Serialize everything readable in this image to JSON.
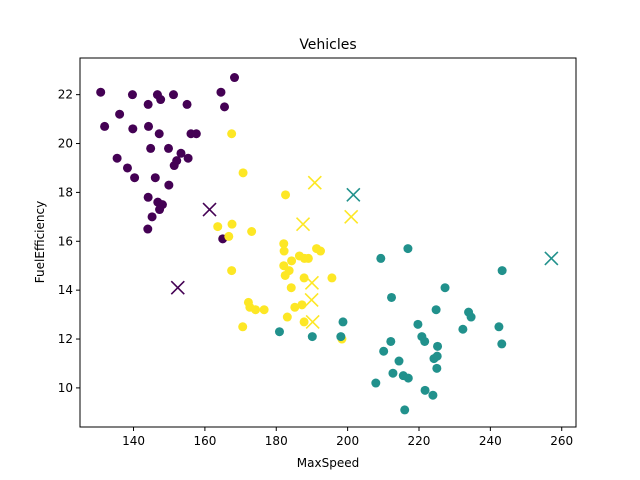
{
  "chart_data": {
    "type": "scatter",
    "title": "Vehicles",
    "xlabel": "MaxSpeed",
    "ylabel": "FuelEfficiency",
    "xlim": [
      125,
      264
    ],
    "ylim": [
      8.4,
      23.5
    ],
    "xticks": [
      140,
      160,
      180,
      200,
      220,
      240,
      260
    ],
    "yticks": [
      10,
      12,
      14,
      16,
      18,
      20,
      22
    ],
    "grid": false,
    "legend": "none",
    "colors": {
      "purple": "#440154",
      "teal": "#21918c",
      "yellow": "#fde725"
    },
    "series": [
      {
        "color": "#440154",
        "marker": "circle",
        "points": [
          [
            130.8,
            22.1
          ],
          [
            139.7,
            22.0
          ],
          [
            144.1,
            21.6
          ],
          [
            146.7,
            22.0
          ],
          [
            147.6,
            21.8
          ],
          [
            151.2,
            22.0
          ],
          [
            155.0,
            21.6
          ],
          [
            164.5,
            22.1
          ],
          [
            165.5,
            21.5
          ],
          [
            168.3,
            22.7
          ],
          [
            131.9,
            20.7
          ],
          [
            136.1,
            21.2
          ],
          [
            139.8,
            20.6
          ],
          [
            144.2,
            20.7
          ],
          [
            147.2,
            20.4
          ],
          [
            156.1,
            20.4
          ],
          [
            157.6,
            20.4
          ],
          [
            144.8,
            19.8
          ],
          [
            149.8,
            19.8
          ],
          [
            153.3,
            19.6
          ],
          [
            155.3,
            19.4
          ],
          [
            151.4,
            19.1
          ],
          [
            152.1,
            19.3
          ],
          [
            135.4,
            19.4
          ],
          [
            138.3,
            19.0
          ],
          [
            140.3,
            18.6
          ],
          [
            146.1,
            18.6
          ],
          [
            149.9,
            18.3
          ],
          [
            144.1,
            17.8
          ],
          [
            146.8,
            17.6
          ],
          [
            148.1,
            17.5
          ],
          [
            147.3,
            17.3
          ],
          [
            145.2,
            17.0
          ],
          [
            144.0,
            16.5
          ],
          [
            165.0,
            16.1
          ]
        ]
      },
      {
        "color": "#fde725",
        "marker": "circle",
        "points": [
          [
            167.5,
            20.4
          ],
          [
            170.7,
            18.8
          ],
          [
            182.6,
            17.9
          ],
          [
            163.6,
            16.6
          ],
          [
            167.6,
            16.7
          ],
          [
            166.7,
            16.2
          ],
          [
            173.1,
            16.4
          ],
          [
            182.1,
            15.9
          ],
          [
            182.2,
            15.6
          ],
          [
            184.3,
            15.2
          ],
          [
            182.1,
            15.0
          ],
          [
            183.6,
            14.8
          ],
          [
            186.5,
            15.4
          ],
          [
            187.9,
            15.3
          ],
          [
            189.0,
            15.3
          ],
          [
            191.3,
            15.7
          ],
          [
            192.4,
            15.6
          ],
          [
            167.5,
            14.8
          ],
          [
            182.5,
            14.6
          ],
          [
            184.2,
            14.1
          ],
          [
            187.8,
            14.5
          ],
          [
            195.6,
            14.5
          ],
          [
            172.2,
            13.5
          ],
          [
            172.6,
            13.3
          ],
          [
            174.2,
            13.2
          ],
          [
            176.6,
            13.2
          ],
          [
            185.2,
            13.3
          ],
          [
            187.2,
            13.4
          ],
          [
            183.1,
            12.9
          ],
          [
            187.8,
            12.7
          ],
          [
            170.6,
            12.5
          ],
          [
            198.4,
            12.0
          ]
        ]
      },
      {
        "color": "#21918c",
        "marker": "circle",
        "points": [
          [
            216.9,
            15.7
          ],
          [
            209.3,
            15.3
          ],
          [
            243.3,
            14.8
          ],
          [
            227.3,
            14.1
          ],
          [
            212.3,
            13.7
          ],
          [
            224.8,
            13.2
          ],
          [
            233.9,
            13.1
          ],
          [
            234.6,
            12.9
          ],
          [
            198.7,
            12.7
          ],
          [
            219.7,
            12.6
          ],
          [
            232.3,
            12.4
          ],
          [
            242.4,
            12.5
          ],
          [
            180.9,
            12.3
          ],
          [
            198.1,
            12.1
          ],
          [
            190.1,
            12.1
          ],
          [
            212.1,
            11.9
          ],
          [
            220.8,
            12.1
          ],
          [
            221.6,
            11.9
          ],
          [
            225.2,
            11.7
          ],
          [
            243.2,
            11.8
          ],
          [
            210.1,
            11.5
          ],
          [
            214.4,
            11.1
          ],
          [
            224.2,
            11.2
          ],
          [
            225.1,
            11.3
          ],
          [
            212.7,
            10.6
          ],
          [
            215.6,
            10.5
          ],
          [
            217.0,
            10.4
          ],
          [
            225.0,
            10.8
          ],
          [
            207.9,
            10.2
          ],
          [
            221.7,
            9.9
          ],
          [
            223.9,
            9.7
          ],
          [
            216.0,
            9.1
          ]
        ]
      }
    ],
    "centroids": [
      {
        "color": "#440154",
        "marker": "x",
        "points": [
          [
            161.3,
            17.3
          ],
          [
            152.4,
            14.1
          ]
        ]
      },
      {
        "color": "#21918c",
        "marker": "x",
        "points": [
          [
            201.6,
            17.9
          ],
          [
            257.1,
            15.3
          ]
        ]
      },
      {
        "color": "#fde725",
        "marker": "x",
        "points": [
          [
            190.8,
            18.4
          ],
          [
            201.0,
            17.0
          ],
          [
            187.5,
            16.7
          ],
          [
            190.0,
            14.3
          ],
          [
            189.9,
            13.6
          ],
          [
            190.2,
            12.7
          ]
        ]
      }
    ]
  }
}
